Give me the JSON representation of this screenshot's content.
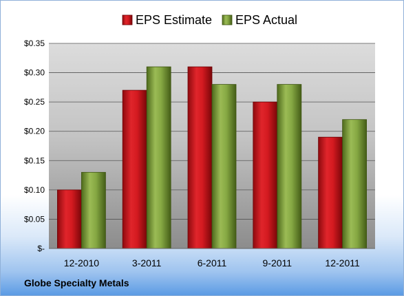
{
  "footer": {
    "company": "Globe Specialty Metals"
  },
  "colors": {
    "estimate": "#c8161c",
    "actual": "#7a9a35"
  },
  "chart_data": {
    "type": "bar",
    "title": "",
    "xlabel": "",
    "ylabel": "",
    "categories": [
      "12-2010",
      "3-2011",
      "6-2011",
      "9-2011",
      "12-2011"
    ],
    "series": [
      {
        "name": "EPS Estimate",
        "values": [
          0.1,
          0.27,
          0.31,
          0.25,
          0.19
        ]
      },
      {
        "name": "EPS Actual",
        "values": [
          0.13,
          0.31,
          0.28,
          0.28,
          0.22
        ]
      }
    ],
    "ylim": [
      0,
      0.35
    ],
    "yticks": [
      0,
      0.05,
      0.1,
      0.15,
      0.2,
      0.25,
      0.3,
      0.35
    ],
    "ytick_labels": [
      "$-",
      "$0.05",
      "$0.10",
      "$0.15",
      "$0.20",
      "$0.25",
      "$0.30",
      "$0.35"
    ],
    "grid": true,
    "legend_position": "top-center"
  }
}
